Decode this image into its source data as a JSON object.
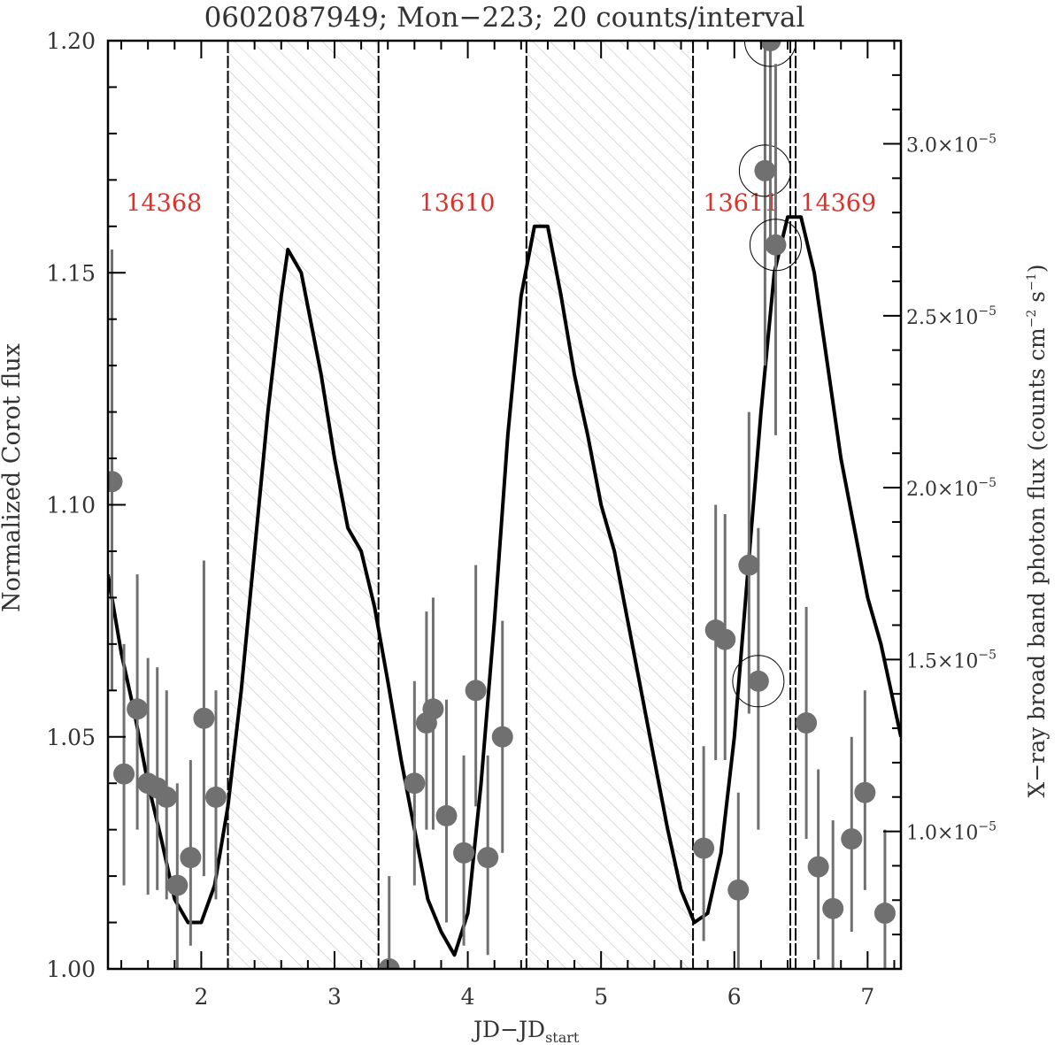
{
  "chart_data": {
    "type": "line",
    "title": "0602087949; Mon−223; 20 counts/interval",
    "xlabel_main": "JD−JD",
    "xlabel_sub": "start",
    "ylabel_left": "Normalized Corot flux",
    "ylabel_right_prefix": "X−ray broad band photon flux (counts cm",
    "ylabel_right_sup1": "−2",
    "ylabel_right_mid": " s",
    "ylabel_right_sup2": "−1",
    "ylabel_right_suffix": ")",
    "xlim": [
      1.3,
      7.25
    ],
    "ylim_left": [
      1.0,
      1.2
    ],
    "ylim_right": [
      6e-06,
      3.3e-05
    ],
    "x_ticks": [
      2,
      3,
      4,
      5,
      6,
      7
    ],
    "x_tick_labels": [
      "2",
      "3",
      "4",
      "5",
      "6",
      "7"
    ],
    "y_left_ticks": [
      1.0,
      1.05,
      1.1,
      1.15,
      1.2
    ],
    "y_left_tick_labels": [
      "1.00",
      "1.05",
      "1.10",
      "1.15",
      "1.20"
    ],
    "y_right_ticks": [
      1e-05,
      1.5e-05,
      2e-05,
      2.5e-05,
      3e-05
    ],
    "y_right_tick_mantissas": [
      "1.0×10",
      "1.5×10",
      "2.0×10",
      "2.5×10",
      "3.0×10"
    ],
    "y_right_tick_exponent": "−5",
    "hatched_intervals": [
      [
        2.2,
        3.33
      ],
      [
        4.44,
        5.69
      ]
    ],
    "separators": [
      2.2,
      3.33,
      4.44,
      5.69,
      6.42,
      6.46
    ],
    "segment_labels": [
      {
        "text": "14368",
        "x": 1.72
      },
      {
        "text": "13610",
        "x": 3.92
      },
      {
        "text": "13611",
        "x": 6.05
      },
      {
        "text": "14369",
        "x": 6.78
      }
    ],
    "segment_label_y": 1.165,
    "colors": {
      "corot_line": "#000000",
      "xray_points": "#707070",
      "segment_labels": "#e0302a",
      "hatch": "#c8c8c8"
    },
    "corot_curve": {
      "name": "Corot flux",
      "x": [
        1.3,
        1.4,
        1.5,
        1.6,
        1.7,
        1.8,
        1.9,
        2.0,
        2.1,
        2.2,
        2.3,
        2.4,
        2.5,
        2.6,
        2.65,
        2.75,
        2.9,
        3.0,
        3.1,
        3.2,
        3.3,
        3.4,
        3.5,
        3.6,
        3.7,
        3.8,
        3.9,
        4.0,
        4.1,
        4.2,
        4.3,
        4.4,
        4.5,
        4.6,
        4.7,
        4.8,
        4.9,
        5.0,
        5.1,
        5.2,
        5.3,
        5.4,
        5.5,
        5.6,
        5.7,
        5.8,
        5.9,
        6.0,
        6.1,
        6.2,
        6.3,
        6.4,
        6.5,
        6.6,
        6.7,
        6.8,
        6.9,
        7.0,
        7.1,
        7.25
      ],
      "y": [
        1.085,
        1.068,
        1.055,
        1.04,
        1.028,
        1.015,
        1.01,
        1.01,
        1.018,
        1.035,
        1.06,
        1.09,
        1.12,
        1.145,
        1.155,
        1.15,
        1.128,
        1.11,
        1.095,
        1.09,
        1.078,
        1.062,
        1.045,
        1.03,
        1.015,
        1.008,
        1.003,
        1.012,
        1.04,
        1.075,
        1.115,
        1.145,
        1.16,
        1.16,
        1.145,
        1.128,
        1.115,
        1.1,
        1.09,
        1.075,
        1.06,
        1.045,
        1.03,
        1.017,
        1.01,
        1.012,
        1.025,
        1.05,
        1.085,
        1.12,
        1.15,
        1.162,
        1.162,
        1.15,
        1.13,
        1.11,
        1.095,
        1.08,
        1.07,
        1.05
      ]
    },
    "xray_points": {
      "name": "X-ray broad band photon flux",
      "points": [
        {
          "x": 1.33,
          "y": 1.105,
          "lo": 1.06,
          "hi": 1.155,
          "circled": false
        },
        {
          "x": 1.42,
          "y": 1.042,
          "lo": 1.018,
          "hi": 1.07,
          "circled": false
        },
        {
          "x": 1.52,
          "y": 1.056,
          "lo": 1.03,
          "hi": 1.085,
          "circled": false
        },
        {
          "x": 1.6,
          "y": 1.04,
          "lo": 1.016,
          "hi": 1.067,
          "circled": false
        },
        {
          "x": 1.67,
          "y": 1.039,
          "lo": 1.017,
          "hi": 1.065,
          "circled": false
        },
        {
          "x": 1.74,
          "y": 1.037,
          "lo": 1.015,
          "hi": 1.06,
          "circled": false
        },
        {
          "x": 1.82,
          "y": 1.018,
          "lo": 1.0,
          "hi": 1.04,
          "circled": false
        },
        {
          "x": 1.92,
          "y": 1.024,
          "lo": 1.005,
          "hi": 1.045,
          "circled": false
        },
        {
          "x": 2.02,
          "y": 1.054,
          "lo": 1.02,
          "hi": 1.088,
          "circled": false
        },
        {
          "x": 2.11,
          "y": 1.037,
          "lo": 1.015,
          "hi": 1.06,
          "circled": false
        },
        {
          "x": 3.41,
          "y": 1.0,
          "lo": 1.0,
          "hi": 1.02,
          "circled": false
        },
        {
          "x": 3.6,
          "y": 1.04,
          "lo": 1.018,
          "hi": 1.062,
          "circled": false
        },
        {
          "x": 3.69,
          "y": 1.053,
          "lo": 1.03,
          "hi": 1.077,
          "circled": false
        },
        {
          "x": 3.74,
          "y": 1.056,
          "lo": 1.03,
          "hi": 1.08,
          "circled": false
        },
        {
          "x": 3.84,
          "y": 1.033,
          "lo": 1.01,
          "hi": 1.058,
          "circled": false
        },
        {
          "x": 3.97,
          "y": 1.025,
          "lo": 1.005,
          "hi": 1.046,
          "circled": false
        },
        {
          "x": 4.06,
          "y": 1.06,
          "lo": 1.035,
          "hi": 1.087,
          "circled": false
        },
        {
          "x": 4.15,
          "y": 1.024,
          "lo": 1.003,
          "hi": 1.046,
          "circled": false
        },
        {
          "x": 4.26,
          "y": 1.05,
          "lo": 1.025,
          "hi": 1.075,
          "circled": false
        },
        {
          "x": 5.77,
          "y": 1.026,
          "lo": 1.006,
          "hi": 1.048,
          "circled": false
        },
        {
          "x": 5.86,
          "y": 1.073,
          "lo": 1.045,
          "hi": 1.1,
          "circled": false
        },
        {
          "x": 5.93,
          "y": 1.071,
          "lo": 1.045,
          "hi": 1.098,
          "circled": false
        },
        {
          "x": 6.03,
          "y": 1.017,
          "lo": 0.998,
          "hi": 1.038,
          "circled": false
        },
        {
          "x": 6.11,
          "y": 1.087,
          "lo": 1.055,
          "hi": 1.12,
          "circled": false
        },
        {
          "x": 6.18,
          "y": 1.062,
          "lo": 1.03,
          "hi": 1.095,
          "circled": true
        },
        {
          "x": 6.23,
          "y": 1.172,
          "lo": 1.13,
          "hi": 1.2,
          "circled": true
        },
        {
          "x": 6.27,
          "y": 1.2,
          "lo": 1.155,
          "hi": 1.2,
          "circled": true
        },
        {
          "x": 6.31,
          "y": 1.156,
          "lo": 1.115,
          "hi": 1.195,
          "circled": true
        },
        {
          "x": 6.54,
          "y": 1.053,
          "lo": 1.028,
          "hi": 1.078,
          "circled": false
        },
        {
          "x": 6.63,
          "y": 1.022,
          "lo": 1.002,
          "hi": 1.043,
          "circled": false
        },
        {
          "x": 6.74,
          "y": 1.013,
          "lo": 0.995,
          "hi": 1.032,
          "circled": false
        },
        {
          "x": 6.88,
          "y": 1.028,
          "lo": 1.008,
          "hi": 1.05,
          "circled": false
        },
        {
          "x": 6.98,
          "y": 1.038,
          "lo": 1.017,
          "hi": 1.06,
          "circled": false
        },
        {
          "x": 7.13,
          "y": 1.012,
          "lo": 0.995,
          "hi": 1.03,
          "circled": false
        }
      ]
    }
  }
}
